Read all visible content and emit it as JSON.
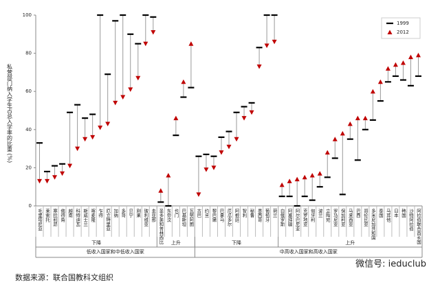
{
  "chart_data": {
    "type": "dumbbell",
    "y_label": "私营部门纳入学生占总入学率的比重 (%)",
    "ylim": [
      0,
      100
    ],
    "yticks": [
      0,
      20,
      40,
      60,
      80,
      100
    ],
    "groups": [
      {
        "name": "低收入国家和中低收入国家",
        "subgroups": [
          {
            "name": "下降",
            "categories": [
              "毛里塔尼亚",
              "莱索托",
              "塞拉利昂",
              "佛得角",
              "越南",
              "科特迪瓦",
              "斯威士兰",
              "喀麦隆",
              "乍得",
              "厄立特里亚",
              "加纳",
              "多哥",
              "贝宁",
              "刚果",
              "玻利维亚",
              "圭亚那"
            ]
          },
          {
            "name": "上升",
            "categories": [
              "圣多美和普林西比",
              "东帝汶",
              "也门",
              "巴基斯坦",
              "瓦努阿图"
            ]
          }
        ]
      },
      {
        "name": "中高收入国家和高收入国家",
        "subgroups": [
          {
            "name": "下降",
            "categories": [
              "古巴",
              "约旦",
              "黎巴嫩",
              "巴拿马",
              "厄瓜多尔",
              "阿根廷",
              "智利",
              "秘鲁",
              "墨西哥",
              "葡萄牙",
              "荷兰"
            ]
          },
          {
            "name": "上升",
            "categories": [
              "白俄罗斯",
              "阿塞拜疆",
              "阿尔巴尼亚",
              "克罗地亚",
              "匈牙利",
              "波兰",
              "立陶宛",
              "罗马尼亚",
              "保加利亚",
              "马来西亚",
              "巴西",
              "哥伦比亚",
              "多米尼加共和国",
              "泰国",
              "马耳他",
              "日本",
              "韩国",
              "沙特阿拉伯",
              "阿拉伯联合酋长国"
            ]
          }
        ]
      }
    ],
    "series": [
      {
        "name": "1999",
        "color": "#000000",
        "values": [
          33,
          18,
          21,
          22,
          49,
          53,
          46,
          48,
          100,
          69,
          97,
          100,
          90,
          85,
          100,
          99,
          2,
          0,
          37,
          57,
          62,
          26,
          27,
          26,
          36,
          39,
          49,
          52,
          54,
          83,
          100,
          100,
          5,
          5,
          0,
          5,
          3,
          10,
          15,
          25,
          6,
          35,
          24,
          40,
          45,
          55,
          65,
          68,
          66,
          63,
          68
        ]
      },
      {
        "name": "2012",
        "color": "#c00000",
        "values": [
          13,
          13,
          15,
          17,
          21,
          30,
          35,
          36,
          41,
          43,
          54,
          57,
          61,
          67,
          85,
          91,
          8,
          16,
          46,
          65,
          85,
          6,
          19,
          20,
          28,
          31,
          35,
          46,
          49,
          73,
          84,
          86,
          11,
          13,
          14,
          15,
          16,
          17,
          28,
          35,
          38,
          43,
          46,
          46,
          60,
          65,
          72,
          74,
          75,
          78,
          79
        ]
      }
    ],
    "source": "数据来源：联合国教科文组织",
    "watermark": "微信号: ieduclub"
  }
}
